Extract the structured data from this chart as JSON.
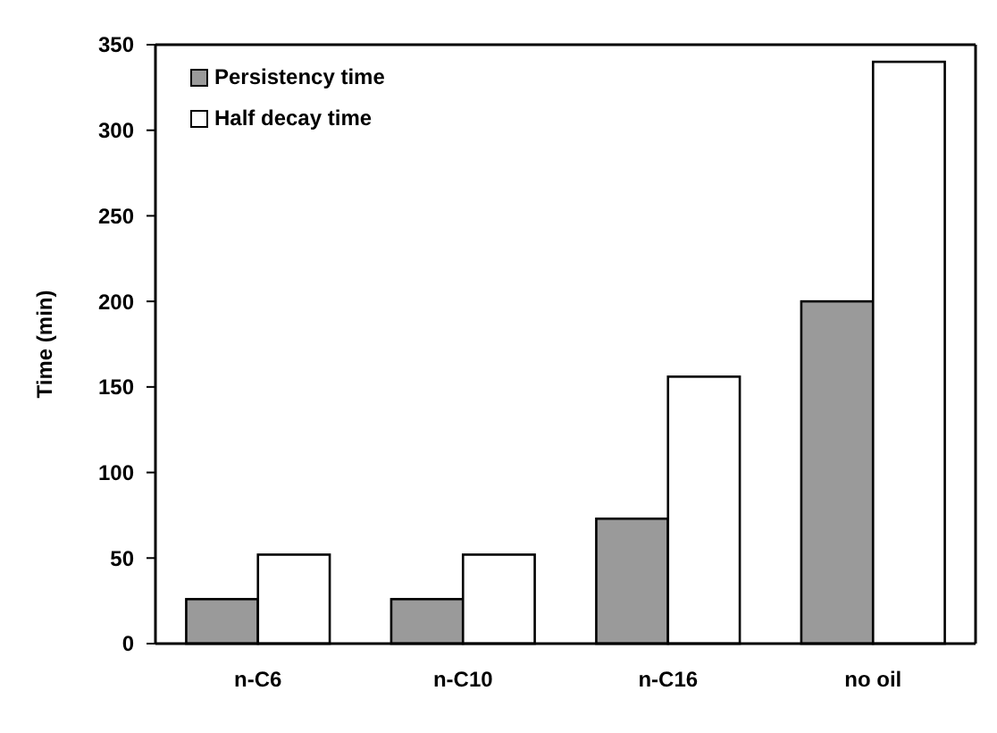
{
  "chart_data": {
    "type": "bar",
    "ylabel": "Time (min)",
    "categories": [
      "n-C6",
      "n-C10",
      "n-C16",
      "no oil"
    ],
    "series": [
      {
        "name": "Persistency time",
        "color": "#9a9a9a",
        "values": [
          26,
          26,
          73,
          200
        ]
      },
      {
        "name": "Half decay time",
        "color": "#ffffff",
        "values": [
          52,
          52,
          156,
          340
        ]
      }
    ],
    "ylim": [
      0,
      350
    ],
    "yticks": [
      0,
      50,
      100,
      150,
      200,
      250,
      300,
      350
    ],
    "legend": "top left"
  }
}
